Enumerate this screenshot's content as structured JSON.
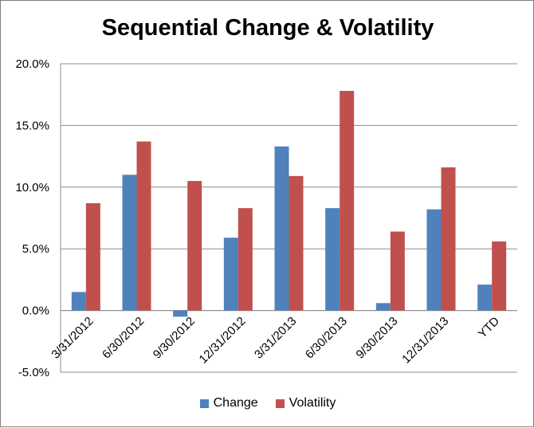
{
  "chart_data": {
    "type": "bar",
    "title": "Sequential Change & Volatility",
    "categories": [
      "3/31/2012",
      "6/30/2012",
      "9/30/2012",
      "12/31/2012",
      "3/31/2013",
      "6/30/2013",
      "9/30/2013",
      "12/31/2013",
      "YTD"
    ],
    "series": [
      {
        "name": "Change",
        "color": "#4f81bd",
        "values": [
          1.5,
          11.0,
          -0.5,
          5.9,
          13.3,
          8.3,
          0.6,
          8.2,
          2.1
        ]
      },
      {
        "name": "Volatility",
        "color": "#c0504d",
        "values": [
          8.7,
          13.7,
          10.5,
          8.3,
          10.9,
          17.8,
          6.4,
          11.6,
          5.6
        ]
      }
    ],
    "y_ticks": [
      "20.0%",
      "15.0%",
      "10.0%",
      "5.0%",
      "0.0%",
      "-5.0%"
    ],
    "ylim": [
      -5,
      20
    ],
    "grid": true,
    "legend_position": "bottom"
  }
}
